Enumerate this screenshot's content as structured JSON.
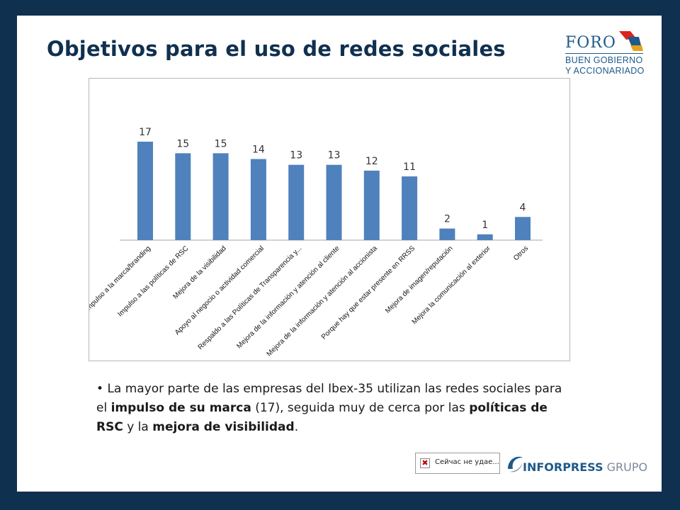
{
  "slide": {
    "title": "Objetivos para el uso de redes sociales",
    "colors": {
      "background": "#10304f",
      "bar": "#4f81bd",
      "title": "#10304f",
      "logo": "#1e5a8a"
    }
  },
  "logo_foro": {
    "name": "FORO",
    "line1": "BUEN GOBIERNO",
    "line2": "Y ACCIONARIADO"
  },
  "chart_data": {
    "type": "bar",
    "title": "",
    "xlabel": "",
    "ylabel": "",
    "ylim": [
      0,
      17
    ],
    "grid": false,
    "legend": "none",
    "categories": [
      "Impulso a la marca/branding",
      "Impulso a las políticas de RSC",
      "Mejora de la visibilidad",
      "Apoyo al negocio o actividad comercial",
      "Respaldo a las Políticas de Transparencia y...",
      "Mejora de la información y atención al cliente",
      "Mejora de la información y atención al accionista",
      "Porque hay que estar presente en RRSS",
      "Mejora de imagen/reputación",
      "Mejora la comunicación al exterior",
      "Otros"
    ],
    "values": [
      17,
      15,
      15,
      14,
      13,
      13,
      12,
      11,
      2,
      1,
      4
    ]
  },
  "bullet": {
    "p1": "La mayor parte de las empresas del Ibex-35 utilizan las redes sociales para el ",
    "b1": "impulso de su marca",
    "p2": " (17), seguida muy de cerca por las ",
    "b2": "políticas de RSC",
    "p3": " y la ",
    "b3": "mejora de visibilidad",
    "p4": "."
  },
  "broken_image": {
    "text": "Сейчас не удае..."
  },
  "footer_logo": {
    "name_bold": "INFORPRESS",
    "name_light": " GRUPO"
  }
}
